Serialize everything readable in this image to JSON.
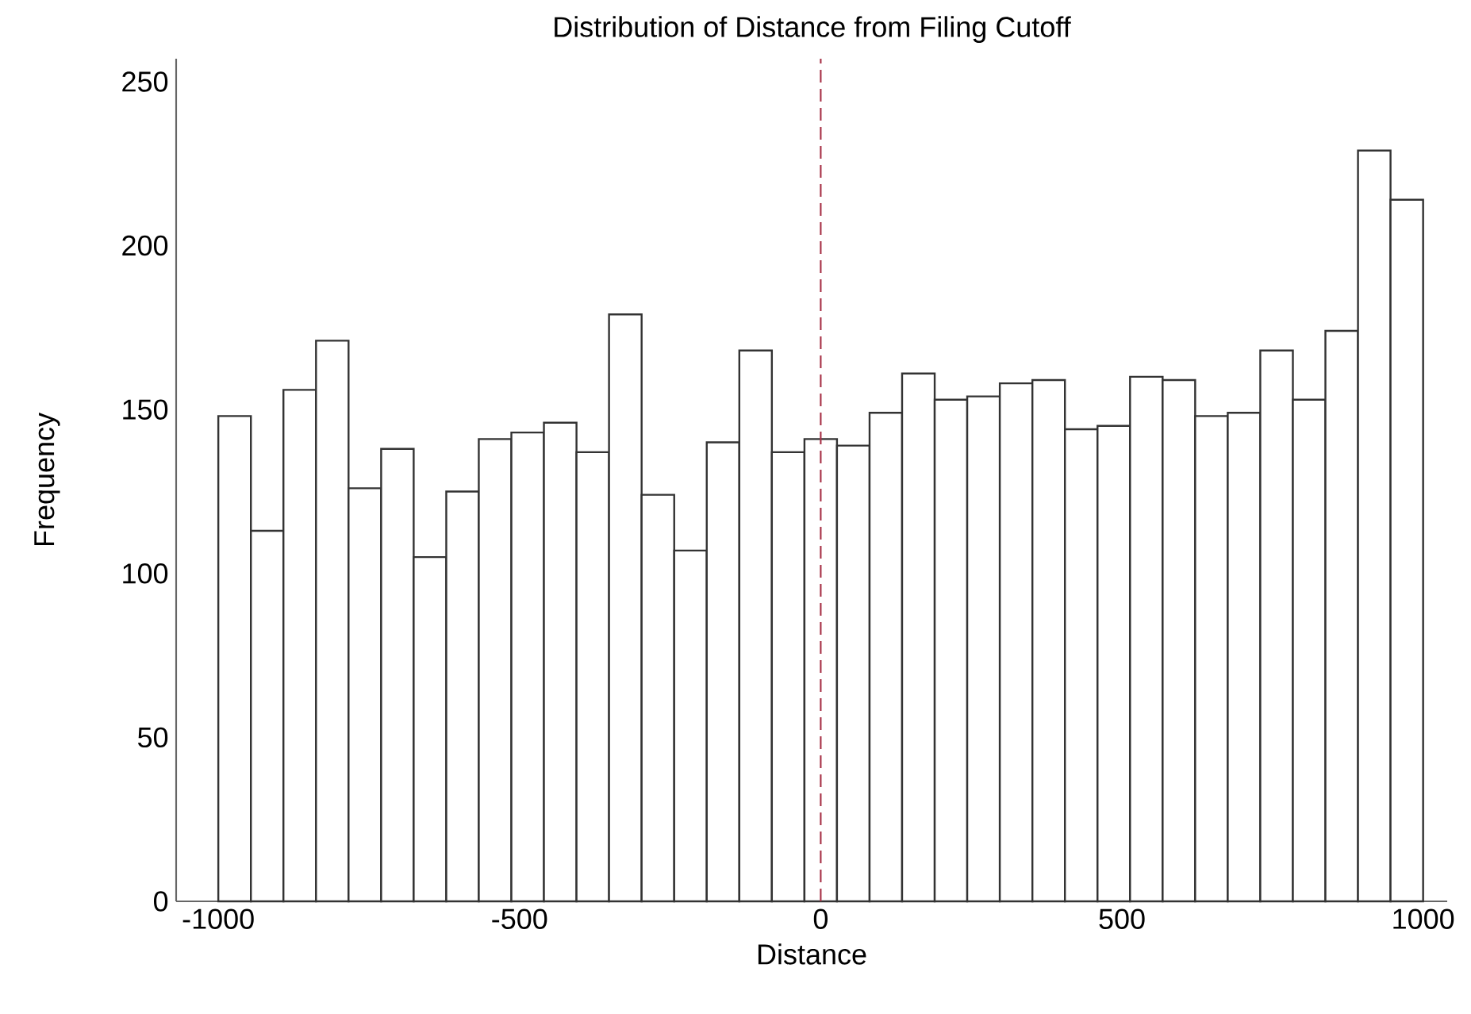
{
  "chart_data": {
    "type": "histogram",
    "title": "Distribution of Distance from Filing Cutoff",
    "xlabel": "Distance",
    "ylabel": "Frequency",
    "bins": [
      -1000,
      -945.9,
      -891.9,
      -837.8,
      -783.8,
      -729.7,
      -675.7,
      -621.6,
      -567.6,
      -513.5,
      -459.5,
      -405.4,
      -351.4,
      -297.3,
      -243.2,
      -189.2,
      -135.1,
      -81.1,
      -27.0,
      27.0,
      81.1,
      135.1,
      189.2,
      243.2,
      297.3,
      351.4,
      405.4,
      459.5,
      513.5,
      567.6,
      621.6,
      675.7,
      729.7,
      783.8,
      837.8,
      891.9,
      945.9,
      1000
    ],
    "values": [
      148,
      113,
      156,
      171,
      126,
      138,
      105,
      125,
      141,
      143,
      146,
      137,
      179,
      124,
      107,
      140,
      168,
      137,
      141,
      139,
      149,
      161,
      153,
      154,
      158,
      159,
      144,
      145,
      160,
      159,
      148,
      149,
      168,
      153,
      174,
      229,
      214
    ],
    "color": "#ffffff",
    "xlim": [
      -1070,
      1040
    ],
    "ylim": [
      0,
      257
    ],
    "xticks": [
      -1000,
      -500,
      0,
      500,
      1000
    ],
    "yticks": [
      0,
      50,
      100,
      150,
      200,
      250
    ],
    "ref_lines": [
      {
        "axis": "x",
        "value": 0,
        "color": "#a83248",
        "line_style": "dashed"
      }
    ]
  }
}
